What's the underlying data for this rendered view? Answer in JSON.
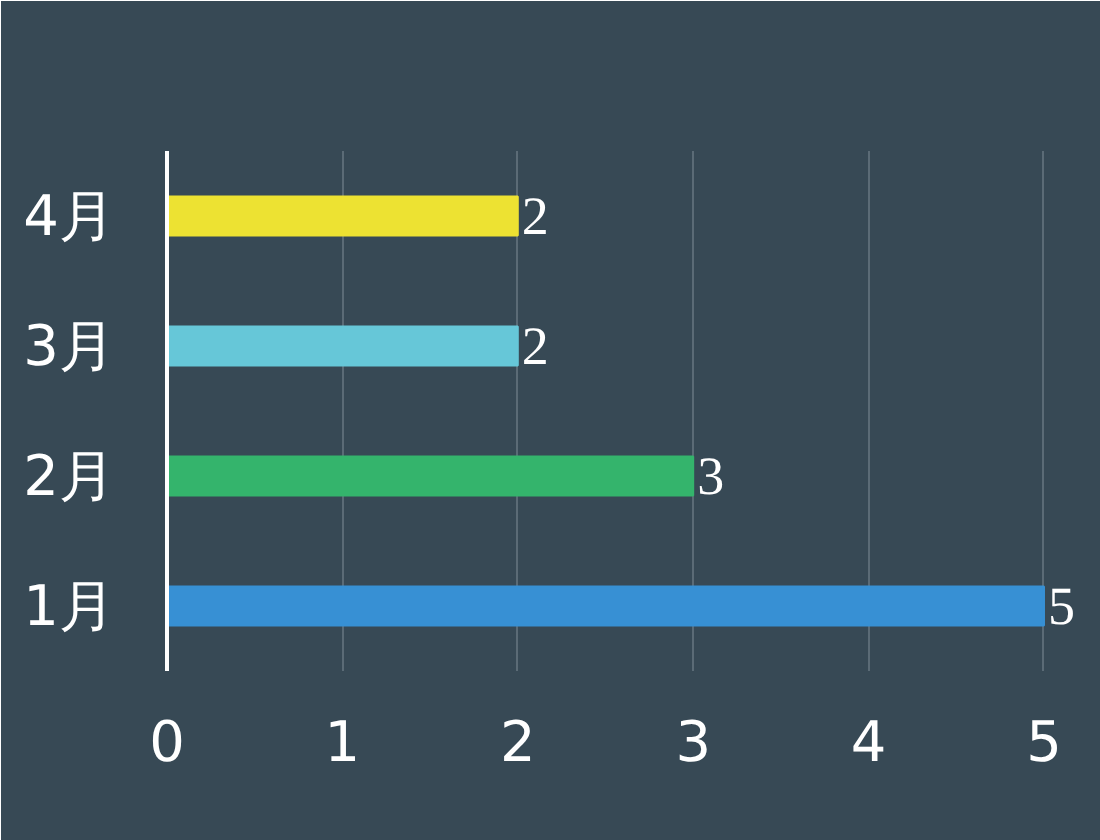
{
  "chart_data": {
    "type": "bar",
    "orientation": "horizontal",
    "categories": [
      "4月",
      "3月",
      "2月",
      "1月"
    ],
    "values": [
      2,
      2,
      3,
      5
    ],
    "colors": [
      "#ede232",
      "#66c7d8",
      "#34b46c",
      "#3790d4"
    ],
    "xlim": [
      0,
      5
    ],
    "xticks": [
      0,
      1,
      2,
      3,
      4,
      5
    ],
    "grid": "x",
    "data_labels": true
  }
}
